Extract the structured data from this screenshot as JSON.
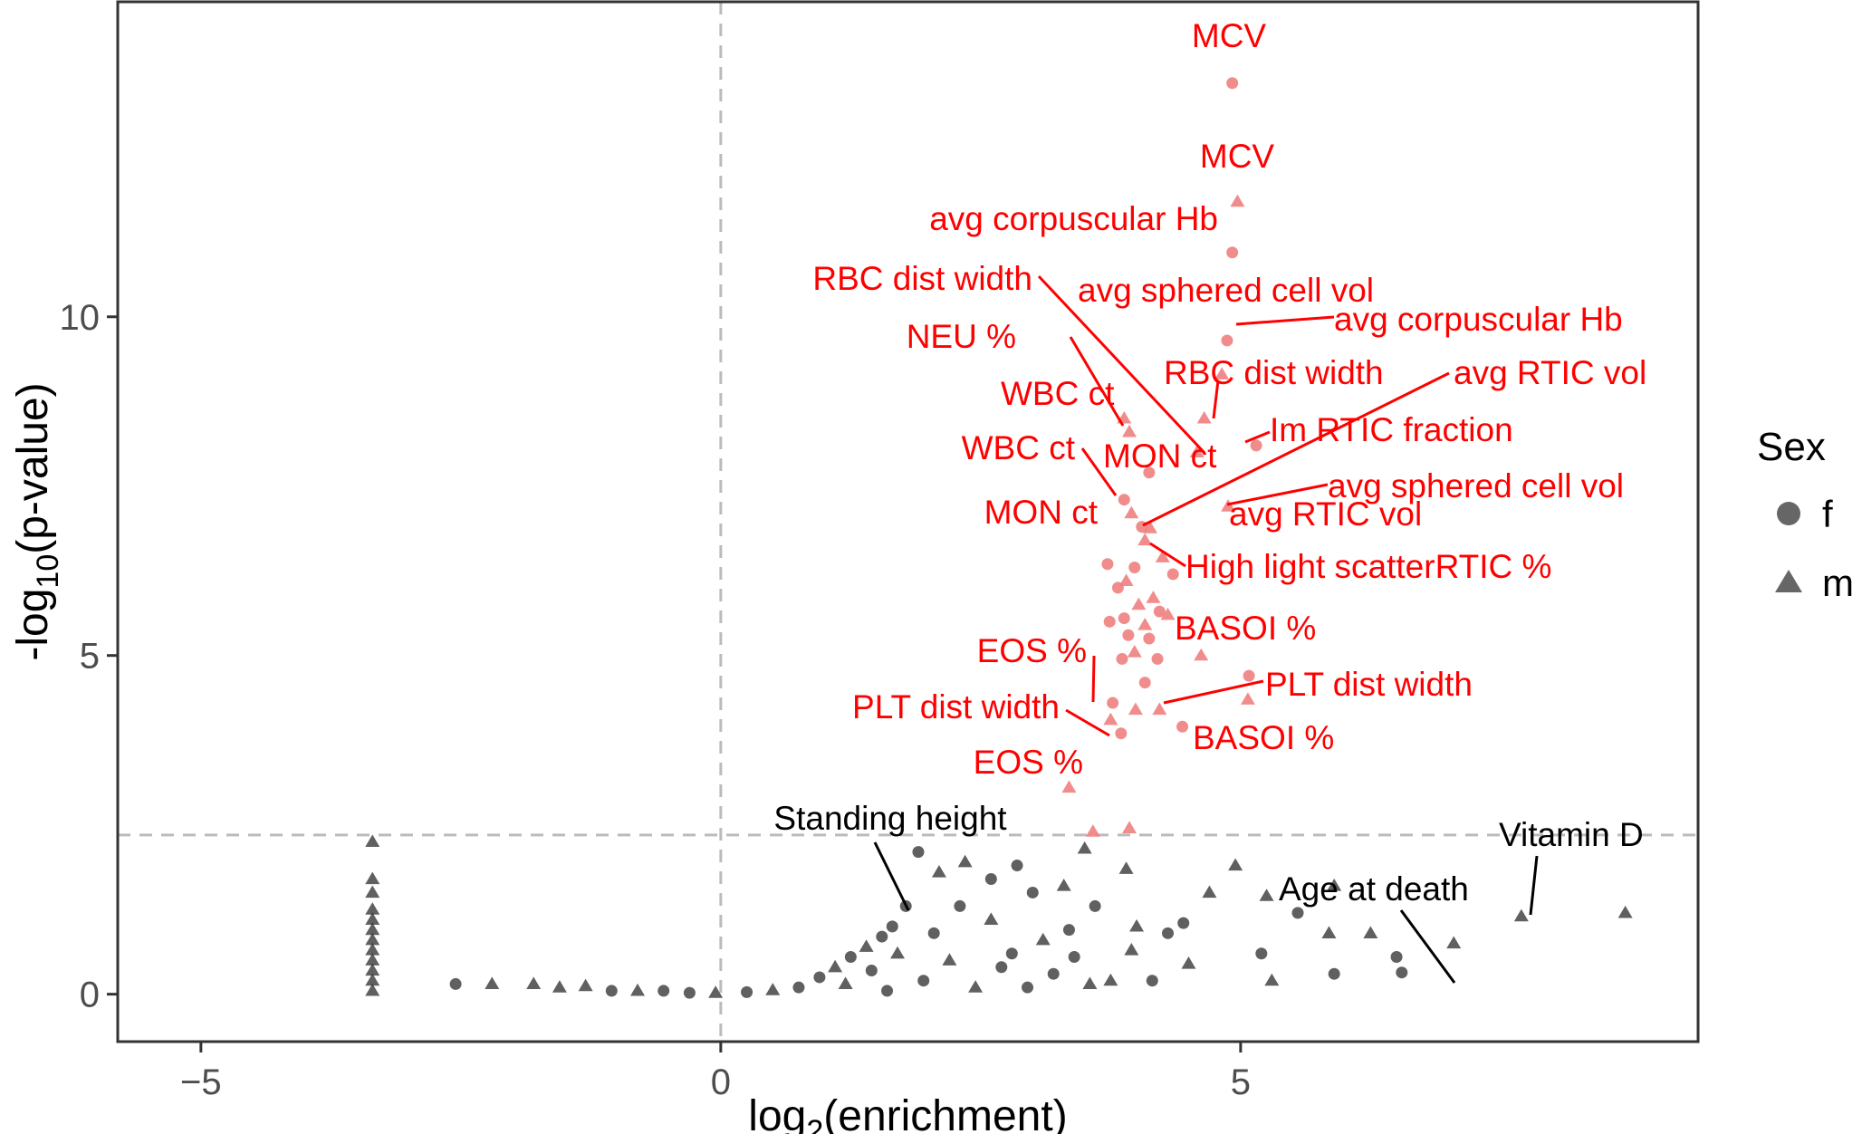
{
  "chart_data": {
    "type": "scatter",
    "title": "",
    "xlabel": "log2(enrichment)",
    "ylabel": "-log10(p-value)",
    "xlim": [
      -5.8,
      9.4
    ],
    "ylim": [
      -0.7,
      14.65
    ],
    "x_ticks": [
      "−5",
      "0",
      "5"
    ],
    "y_ticks": [
      "0",
      "5",
      "10"
    ],
    "threshold": {
      "y": 2.35,
      "x": 0
    },
    "grid": false,
    "legend": {
      "title": "Sex",
      "position": "right",
      "entries": [
        {
          "label": "f",
          "shape": "circle"
        },
        {
          "label": "m",
          "shape": "triangle"
        }
      ]
    },
    "colors": {
      "significant": "#f08080",
      "not_significant": "#222222",
      "significant_label": "#ff0000",
      "threshold_line": "#bbbbbb"
    },
    "series": [
      {
        "name": "significant",
        "points": [
          {
            "x": 4.92,
            "y": 13.45,
            "s": "f"
          },
          {
            "x": 4.97,
            "y": 11.7,
            "s": "m"
          },
          {
            "x": 4.92,
            "y": 10.95,
            "s": "f"
          },
          {
            "x": 4.87,
            "y": 9.65,
            "s": "f"
          },
          {
            "x": 4.82,
            "y": 9.15,
            "s": "m"
          },
          {
            "x": 4.65,
            "y": 8.5,
            "s": "m"
          },
          {
            "x": 5.15,
            "y": 8.1,
            "s": "f"
          },
          {
            "x": 4.58,
            "y": 8.0,
            "s": "m"
          },
          {
            "x": 3.88,
            "y": 8.5,
            "s": "m"
          },
          {
            "x": 3.93,
            "y": 8.3,
            "s": "m"
          },
          {
            "x": 4.12,
            "y": 7.7,
            "s": "f"
          },
          {
            "x": 3.88,
            "y": 7.3,
            "s": "f"
          },
          {
            "x": 3.95,
            "y": 7.1,
            "s": "m"
          },
          {
            "x": 4.88,
            "y": 7.2,
            "s": "m"
          },
          {
            "x": 4.05,
            "y": 6.9,
            "s": "f"
          },
          {
            "x": 4.13,
            "y": 6.88,
            "s": "m"
          },
          {
            "x": 4.08,
            "y": 6.7,
            "s": "m"
          },
          {
            "x": 4.25,
            "y": 6.45,
            "s": "m"
          },
          {
            "x": 4.35,
            "y": 6.2,
            "s": "f"
          },
          {
            "x": 3.72,
            "y": 6.35,
            "s": "f"
          },
          {
            "x": 3.82,
            "y": 6.0,
            "s": "f"
          },
          {
            "x": 3.98,
            "y": 6.3,
            "s": "f"
          },
          {
            "x": 3.9,
            "y": 6.1,
            "s": "m"
          },
          {
            "x": 4.16,
            "y": 5.85,
            "s": "m"
          },
          {
            "x": 4.02,
            "y": 5.75,
            "s": "m"
          },
          {
            "x": 4.22,
            "y": 5.65,
            "s": "f"
          },
          {
            "x": 3.88,
            "y": 5.55,
            "s": "f"
          },
          {
            "x": 4.3,
            "y": 5.6,
            "s": "m"
          },
          {
            "x": 4.08,
            "y": 5.45,
            "s": "m"
          },
          {
            "x": 3.74,
            "y": 5.5,
            "s": "f"
          },
          {
            "x": 3.92,
            "y": 5.3,
            "s": "f"
          },
          {
            "x": 4.12,
            "y": 5.25,
            "s": "f"
          },
          {
            "x": 3.98,
            "y": 5.05,
            "s": "m"
          },
          {
            "x": 4.62,
            "y": 5.0,
            "s": "m"
          },
          {
            "x": 4.2,
            "y": 4.95,
            "s": "f"
          },
          {
            "x": 3.86,
            "y": 4.95,
            "s": "f"
          },
          {
            "x": 4.08,
            "y": 4.6,
            "s": "f"
          },
          {
            "x": 5.08,
            "y": 4.7,
            "s": "f"
          },
          {
            "x": 5.07,
            "y": 4.35,
            "s": "m"
          },
          {
            "x": 3.77,
            "y": 4.3,
            "s": "f"
          },
          {
            "x": 3.99,
            "y": 4.2,
            "s": "m"
          },
          {
            "x": 4.22,
            "y": 4.2,
            "s": "m"
          },
          {
            "x": 3.75,
            "y": 4.05,
            "s": "m"
          },
          {
            "x": 3.85,
            "y": 3.85,
            "s": "f"
          },
          {
            "x": 4.44,
            "y": 3.95,
            "s": "f"
          },
          {
            "x": 3.35,
            "y": 3.05,
            "s": "m"
          },
          {
            "x": 3.58,
            "y": 2.4,
            "s": "m"
          },
          {
            "x": 3.93,
            "y": 2.45,
            "s": "m"
          }
        ]
      },
      {
        "name": "not significant",
        "points": [
          {
            "x": -3.35,
            "y": 2.25,
            "s": "m"
          },
          {
            "x": -3.35,
            "y": 1.7,
            "s": "m"
          },
          {
            "x": -3.35,
            "y": 1.5,
            "s": "m"
          },
          {
            "x": -3.35,
            "y": 1.25,
            "s": "m"
          },
          {
            "x": -3.35,
            "y": 1.1,
            "s": "m"
          },
          {
            "x": -3.35,
            "y": 0.95,
            "s": "m"
          },
          {
            "x": -3.35,
            "y": 0.8,
            "s": "m"
          },
          {
            "x": -3.35,
            "y": 0.65,
            "s": "m"
          },
          {
            "x": -3.35,
            "y": 0.5,
            "s": "m"
          },
          {
            "x": -3.35,
            "y": 0.35,
            "s": "m"
          },
          {
            "x": -3.35,
            "y": 0.2,
            "s": "m"
          },
          {
            "x": -3.35,
            "y": 0.05,
            "s": "m"
          },
          {
            "x": -2.55,
            "y": 0.15,
            "s": "f"
          },
          {
            "x": -2.2,
            "y": 0.15,
            "s": "m"
          },
          {
            "x": -1.8,
            "y": 0.15,
            "s": "m"
          },
          {
            "x": -1.55,
            "y": 0.1,
            "s": "m"
          },
          {
            "x": -1.3,
            "y": 0.12,
            "s": "m"
          },
          {
            "x": -1.05,
            "y": 0.05,
            "s": "f"
          },
          {
            "x": -0.8,
            "y": 0.05,
            "s": "m"
          },
          {
            "x": -0.55,
            "y": 0.05,
            "s": "f"
          },
          {
            "x": -0.3,
            "y": 0.02,
            "s": "f"
          },
          {
            "x": -0.05,
            "y": 0.02,
            "s": "m"
          },
          {
            "x": 0.25,
            "y": 0.03,
            "s": "f"
          },
          {
            "x": 0.5,
            "y": 0.06,
            "s": "m"
          },
          {
            "x": 0.75,
            "y": 0.1,
            "s": "f"
          },
          {
            "x": 0.95,
            "y": 0.25,
            "s": "f"
          },
          {
            "x": 1.1,
            "y": 0.4,
            "s": "m"
          },
          {
            "x": 1.25,
            "y": 0.55,
            "s": "f"
          },
          {
            "x": 1.4,
            "y": 0.7,
            "s": "m"
          },
          {
            "x": 1.55,
            "y": 0.85,
            "s": "f"
          },
          {
            "x": 1.65,
            "y": 1.0,
            "s": "f"
          },
          {
            "x": 1.78,
            "y": 1.3,
            "s": "f"
          },
          {
            "x": 1.9,
            "y": 2.1,
            "s": "f"
          },
          {
            "x": 2.1,
            "y": 1.8,
            "s": "m"
          },
          {
            "x": 2.35,
            "y": 1.95,
            "s": "m"
          },
          {
            "x": 2.6,
            "y": 1.7,
            "s": "f"
          },
          {
            "x": 2.85,
            "y": 1.9,
            "s": "f"
          },
          {
            "x": 3.0,
            "y": 1.5,
            "s": "f"
          },
          {
            "x": 3.3,
            "y": 1.6,
            "s": "m"
          },
          {
            "x": 3.5,
            "y": 2.15,
            "s": "m"
          },
          {
            "x": 3.9,
            "y": 1.85,
            "s": "m"
          },
          {
            "x": 3.6,
            "y": 1.3,
            "s": "f"
          },
          {
            "x": 4.0,
            "y": 1.0,
            "s": "m"
          },
          {
            "x": 4.3,
            "y": 0.9,
            "s": "f"
          },
          {
            "x": 4.7,
            "y": 1.5,
            "s": "m"
          },
          {
            "x": 4.95,
            "y": 1.9,
            "s": "m"
          },
          {
            "x": 5.25,
            "y": 1.45,
            "s": "m"
          },
          {
            "x": 5.55,
            "y": 1.2,
            "s": "f"
          },
          {
            "x": 5.85,
            "y": 0.9,
            "s": "m"
          },
          {
            "x": 6.25,
            "y": 0.9,
            "s": "m"
          },
          {
            "x": 6.5,
            "y": 0.55,
            "s": "f"
          },
          {
            "x": 5.2,
            "y": 0.6,
            "s": "f"
          },
          {
            "x": 4.5,
            "y": 0.45,
            "s": "m"
          },
          {
            "x": 6.55,
            "y": 0.32,
            "s": "f"
          },
          {
            "x": 5.9,
            "y": 0.3,
            "s": "f"
          },
          {
            "x": 5.3,
            "y": 0.2,
            "s": "m"
          },
          {
            "x": 4.15,
            "y": 0.2,
            "s": "f"
          },
          {
            "x": 3.75,
            "y": 0.2,
            "s": "m"
          },
          {
            "x": 3.2,
            "y": 0.3,
            "s": "f"
          },
          {
            "x": 2.7,
            "y": 0.4,
            "s": "f"
          },
          {
            "x": 2.2,
            "y": 0.5,
            "s": "m"
          },
          {
            "x": 1.95,
            "y": 0.2,
            "s": "f"
          },
          {
            "x": 2.45,
            "y": 0.1,
            "s": "m"
          },
          {
            "x": 2.95,
            "y": 0.1,
            "s": "f"
          },
          {
            "x": 3.55,
            "y": 0.15,
            "s": "m"
          },
          {
            "x": 2.05,
            "y": 0.9,
            "s": "f"
          },
          {
            "x": 2.6,
            "y": 1.1,
            "s": "m"
          },
          {
            "x": 3.1,
            "y": 0.8,
            "s": "m"
          },
          {
            "x": 1.45,
            "y": 0.35,
            "s": "f"
          },
          {
            "x": 1.2,
            "y": 0.15,
            "s": "m"
          },
          {
            "x": 1.6,
            "y": 0.05,
            "s": "f"
          },
          {
            "x": 1.7,
            "y": 0.6,
            "s": "m"
          },
          {
            "x": 2.3,
            "y": 1.3,
            "s": "f"
          },
          {
            "x": 2.8,
            "y": 0.6,
            "s": "f"
          },
          {
            "x": 3.4,
            "y": 0.55,
            "s": "f"
          },
          {
            "x": 7.05,
            "y": 0.75,
            "s": "m"
          },
          {
            "x": 7.7,
            "y": 1.15,
            "s": "m"
          },
          {
            "x": 8.7,
            "y": 1.2,
            "s": "m"
          },
          {
            "x": 5.9,
            "y": 1.6,
            "s": "m"
          },
          {
            "x": 4.45,
            "y": 1.05,
            "s": "f"
          },
          {
            "x": 3.95,
            "y": 0.65,
            "s": "m"
          },
          {
            "x": 3.35,
            "y": 0.95,
            "s": "f"
          }
        ]
      }
    ],
    "annotations": [
      {
        "text": "MCV",
        "color": "red"
      },
      {
        "text": "MCV",
        "color": "red"
      },
      {
        "text": "avg corpuscular Hb",
        "color": "red"
      },
      {
        "text": "RBC dist width",
        "color": "red"
      },
      {
        "text": "avg sphered cell vol",
        "color": "red"
      },
      {
        "text": "avg corpuscular Hb",
        "color": "red"
      },
      {
        "text": "NEU %",
        "color": "red"
      },
      {
        "text": "RBC dist width",
        "color": "red"
      },
      {
        "text": "avg RTIC vol",
        "color": "red"
      },
      {
        "text": "WBC ct",
        "color": "red"
      },
      {
        "text": "Im RTIC fraction",
        "color": "red"
      },
      {
        "text": "WBC ct",
        "color": "red"
      },
      {
        "text": "MON ct",
        "color": "red"
      },
      {
        "text": "avg sphered cell vol",
        "color": "red"
      },
      {
        "text": "MON ct",
        "color": "red"
      },
      {
        "text": "avg RTIC vol",
        "color": "red"
      },
      {
        "text": "High light scatterRTIC %",
        "color": "red"
      },
      {
        "text": "BASOI %",
        "color": "red"
      },
      {
        "text": "EOS %",
        "color": "red"
      },
      {
        "text": "PLT dist width",
        "color": "red"
      },
      {
        "text": "PLT dist width",
        "color": "red"
      },
      {
        "text": "BASOI %",
        "color": "red"
      },
      {
        "text": "EOS %",
        "color": "red"
      },
      {
        "text": "Standing height",
        "color": "black"
      },
      {
        "text": "Vitamin D",
        "color": "black"
      },
      {
        "text": "Age at death",
        "color": "black"
      }
    ]
  }
}
